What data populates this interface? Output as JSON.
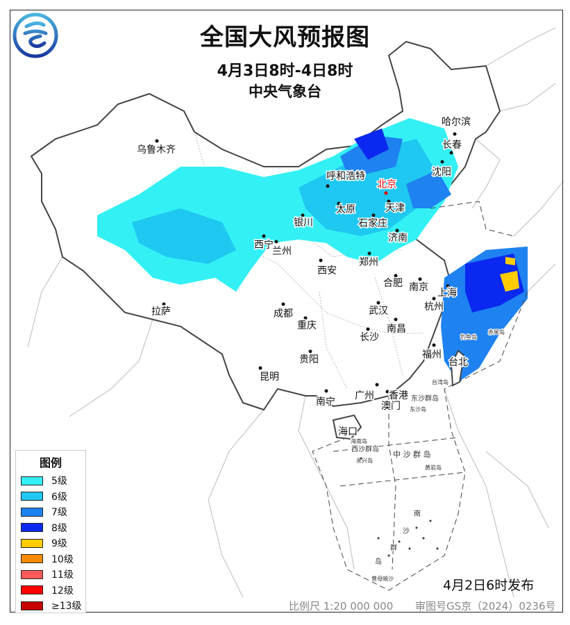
{
  "header": {
    "title": "全国大风预报图",
    "period": "4月3日8时-4日8时",
    "agency": "中央气象台"
  },
  "legend": {
    "title": "图例",
    "items": [
      {
        "label": "5级",
        "color": "#33f0f5"
      },
      {
        "label": "6级",
        "color": "#1ec8f0"
      },
      {
        "label": "7级",
        "color": "#1e82f0"
      },
      {
        "label": "8级",
        "color": "#0a28f0"
      },
      {
        "label": "9级",
        "color": "#ffcc00"
      },
      {
        "label": "10级",
        "color": "#ff8c00"
      },
      {
        "label": "11级",
        "color": "#ff5a5a"
      },
      {
        "label": "12级",
        "color": "#ff0000"
      },
      {
        "label": "≥13级",
        "color": "#c80000"
      }
    ]
  },
  "cities": {
    "urumqi": "乌鲁木齐",
    "harbin": "哈尔滨",
    "changchun": "长春",
    "shenyang": "沈阳",
    "beijing": "北京",
    "hohhot": "呼和浩特",
    "tianjin": "天津",
    "taiyuan": "太原",
    "shijiazhuang": "石家庄",
    "yinchuan": "银川",
    "jinan": "济南",
    "xining": "西宁",
    "lanzhou": "兰州",
    "zhengzhou": "郑州",
    "xian": "西安",
    "hefei": "合肥",
    "nanjing": "南京",
    "shanghai": "上海",
    "hangzhou": "杭州",
    "lhasa": "拉萨",
    "chengdu": "成都",
    "wuhan": "武汉",
    "chongqing": "重庆",
    "nanchang": "南昌",
    "changsha": "长沙",
    "fuzhou": "福州",
    "taipei": "台北",
    "guiyang": "贵阳",
    "kunming": "昆明",
    "nanning": "南宁",
    "guangzhou": "广州",
    "hongkong": "香港",
    "macau": "澳门",
    "haikou": "海口"
  },
  "islands": {
    "dongsha_islands": "东沙群岛",
    "dongsha": "东沙岛",
    "xisha": "西沙群岛",
    "zhongsha": "中 沙 群 岛",
    "hainan": "海南岛",
    "yongxing": "永兴岛",
    "huangyan": "黄岩岛",
    "taiwan": "台湾岛",
    "diaoyu": "钓鱼岛",
    "chiwei": "赤尾岛",
    "nansha_1": "南",
    "nansha_2": "沙",
    "nansha_3": "群",
    "nansha_4": "岛",
    "zengmu": "曾母暗沙"
  },
  "footer": {
    "issued": "4月2日6时发布",
    "scale": "比例尺 1:20 000 000",
    "approval": "审图号GS京（2024）0236号"
  },
  "colors": {
    "beijing_label": "#e00000",
    "border": "#555555"
  }
}
